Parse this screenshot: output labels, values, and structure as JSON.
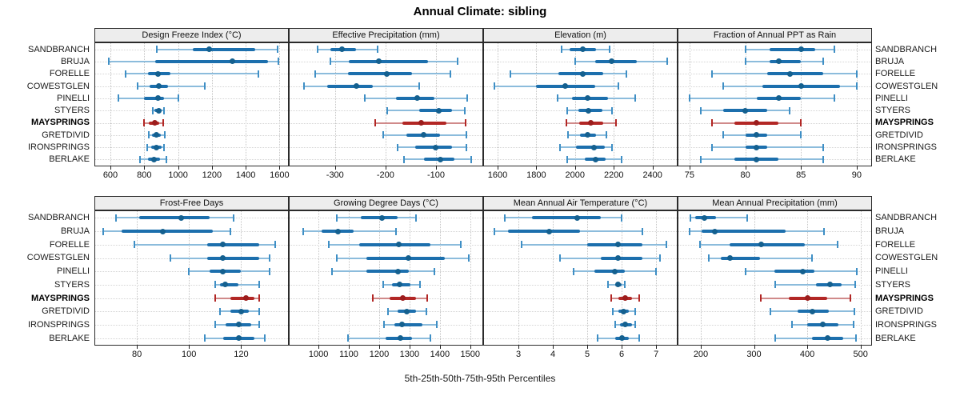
{
  "title": "Annual Climate: sibling",
  "caption": "5th-25th-50th-75th-95th Percentiles",
  "highlight_site": "MAYSPRINGS",
  "colors": {
    "normal_whisker": "#8cbcdc",
    "normal_cap": "#3f8fc5",
    "normal_box": "#1c6fad",
    "normal_dot": "#14608f",
    "highlight_whisker": "#d08a8a",
    "highlight_cap": "#b22725",
    "highlight_box": "#b22725",
    "highlight_dot": "#9c1d1d",
    "header_bg": "#ededed",
    "panel_border": "#2b2b2b"
  },
  "chart_data": {
    "type": "dot-whisker-trellis",
    "percentiles": [
      5,
      25,
      50,
      75,
      95
    ],
    "legend_position": "none",
    "grid": "dotted",
    "categories": [
      "SANDBRANCH",
      "BRUJA",
      "FORELLE",
      "COWESTGLEN",
      "PINELLI",
      "STYERS",
      "MAYSPRINGS",
      "GRETDIVID",
      "IRONSPRINGS",
      "BERLAKE"
    ],
    "panels": [
      {
        "title": "Design Freeze Index (°C)",
        "ticks": [
          600,
          800,
          1000,
          1200,
          1400,
          1600
        ],
        "xlim": [
          510,
          1650
        ],
        "values": [
          [
            875,
            1085,
            1185,
            1455,
            1590
          ],
          [
            590,
            865,
            1320,
            1530,
            1595
          ],
          [
            690,
            820,
            880,
            955,
            1475
          ],
          [
            760,
            830,
            885,
            940,
            1160
          ],
          [
            645,
            800,
            880,
            915,
            1000
          ],
          [
            850,
            862,
            888,
            905,
            917
          ],
          [
            798,
            828,
            863,
            888,
            914
          ],
          [
            827,
            846,
            870,
            898,
            922
          ],
          [
            818,
            841,
            870,
            903,
            917
          ],
          [
            775,
            822,
            859,
            894,
            930
          ]
        ]
      },
      {
        "title": "Effective Precipitation (mm)",
        "ticks": [
          -300,
          -200,
          -100
        ],
        "xlim": [
          -390,
          -8
        ],
        "values": [
          [
            -334,
            -310,
            -287,
            -259,
            -215
          ],
          [
            -309,
            -272,
            -213,
            -116,
            -58
          ],
          [
            -339,
            -275,
            -197,
            -147,
            -72
          ],
          [
            -362,
            -315,
            -257,
            -225,
            -134
          ],
          [
            -241,
            -179,
            -138,
            -103,
            -38
          ],
          [
            -197,
            -134,
            -94,
            -69,
            -43
          ],
          [
            -220,
            -166,
            -130,
            -79,
            -42
          ],
          [
            -205,
            -158,
            -125,
            -92,
            -40
          ],
          [
            -176,
            -142,
            -101,
            -69,
            -40
          ],
          [
            -163,
            -123,
            -92,
            -64,
            -31
          ]
        ]
      },
      {
        "title": "Elevation (m)",
        "ticks": [
          1600,
          1800,
          2000,
          2200,
          2400
        ],
        "xlim": [
          1530,
          2525
        ],
        "values": [
          [
            1930,
            1970,
            2040,
            2110,
            2180
          ],
          [
            2000,
            2105,
            2190,
            2320,
            2475
          ],
          [
            1665,
            1915,
            2040,
            2145,
            2265
          ],
          [
            1585,
            1800,
            1950,
            2105,
            2225
          ],
          [
            1910,
            1985,
            2065,
            2170,
            2310
          ],
          [
            1958,
            2015,
            2067,
            2140,
            2190
          ],
          [
            1955,
            2020,
            2080,
            2145,
            2210
          ],
          [
            1965,
            2025,
            2063,
            2110,
            2160
          ],
          [
            1920,
            2005,
            2098,
            2155,
            2190
          ],
          [
            1958,
            2048,
            2107,
            2157,
            2238
          ]
        ]
      },
      {
        "title": "Fraction of Annual PPT as Rain",
        "ticks": [
          75,
          80,
          85,
          90
        ],
        "xlim": [
          74,
          91.3
        ],
        "values": [
          [
            80,
            82.2,
            85,
            86.3,
            88
          ],
          [
            80,
            82.2,
            83,
            85,
            87
          ],
          [
            77,
            82,
            84,
            87,
            90
          ],
          [
            78,
            81.5,
            85,
            88.5,
            90
          ],
          [
            75,
            81,
            83,
            85,
            88
          ],
          [
            76,
            78,
            80,
            82,
            84
          ],
          [
            77,
            79,
            81,
            83,
            85
          ],
          [
            78,
            80,
            81,
            82,
            85
          ],
          [
            77,
            80,
            81,
            82,
            87
          ],
          [
            76,
            79,
            81,
            83,
            87
          ]
        ]
      },
      {
        "title": "Frost-Free Days",
        "ticks": [
          80,
          100,
          120
        ],
        "xlim": [
          64,
          138
        ],
        "values": [
          [
            72,
            81,
            97,
            108,
            117
          ],
          [
            67,
            74,
            90,
            109,
            116
          ],
          [
            79,
            107,
            113,
            127,
            133
          ],
          [
            93,
            107,
            113,
            127,
            131
          ],
          [
            100,
            108,
            113,
            120,
            131
          ],
          [
            110,
            112,
            114,
            119,
            127
          ],
          [
            110,
            116,
            122,
            125,
            127
          ],
          [
            112,
            116,
            120,
            123,
            127
          ],
          [
            110,
            114,
            119,
            124,
            127
          ],
          [
            106,
            113,
            119,
            125,
            129
          ]
        ]
      },
      {
        "title": "Growing Degree Days (°C)",
        "ticks": [
          1000,
          1100,
          1200,
          1300,
          1400,
          1500
        ],
        "xlim": [
          905,
          1540
        ],
        "values": [
          [
            1060,
            1140,
            1210,
            1260,
            1320
          ],
          [
            950,
            1010,
            1065,
            1115,
            1255
          ],
          [
            1035,
            1135,
            1265,
            1370,
            1470
          ],
          [
            1060,
            1158,
            1297,
            1415,
            1495
          ],
          [
            1045,
            1158,
            1263,
            1297,
            1382
          ],
          [
            1212,
            1242,
            1267,
            1303,
            1335
          ],
          [
            1180,
            1235,
            1278,
            1322,
            1357
          ],
          [
            1230,
            1260,
            1290,
            1322,
            1355
          ],
          [
            1215,
            1250,
            1275,
            1342,
            1390
          ],
          [
            1098,
            1220,
            1270,
            1308,
            1368
          ]
        ]
      },
      {
        "title": "Mean Annual Air Temperature (°C)",
        "ticks": [
          3,
          4,
          5,
          6,
          7
        ],
        "xlim": [
          2.0,
          7.6
        ],
        "values": [
          [
            2.6,
            3.4,
            4.7,
            5.4,
            6.0
          ],
          [
            2.3,
            2.7,
            3.9,
            4.8,
            6.6
          ],
          [
            3.1,
            5.0,
            5.9,
            6.6,
            7.3
          ],
          [
            4.2,
            5.4,
            5.9,
            6.6,
            7.1
          ],
          [
            4.6,
            5.2,
            5.8,
            6.1,
            7.0
          ],
          [
            5.6,
            5.8,
            5.9,
            6.0,
            6.1
          ],
          [
            5.7,
            5.9,
            6.1,
            6.3,
            6.5
          ],
          [
            5.75,
            5.9,
            6.05,
            6.2,
            6.4
          ],
          [
            5.8,
            5.95,
            6.1,
            6.3,
            6.4
          ],
          [
            5.3,
            5.8,
            6.0,
            6.2,
            6.5
          ]
        ]
      },
      {
        "title": "Mean Annual Precipitation (mm)",
        "ticks": [
          200,
          300,
          400,
          500
        ],
        "xlim": [
          158,
          520
        ],
        "values": [
          [
            180,
            190,
            207,
            228,
            287
          ],
          [
            179,
            202,
            227,
            360,
            432
          ],
          [
            198,
            254,
            313,
            395,
            457
          ],
          [
            215,
            237,
            255,
            311,
            409
          ],
          [
            284,
            338,
            392,
            414,
            493
          ],
          [
            339,
            417,
            442,
            464,
            490
          ],
          [
            313,
            365,
            400,
            438,
            481
          ],
          [
            330,
            382,
            409,
            441,
            489
          ],
          [
            371,
            400,
            429,
            459,
            487
          ],
          [
            340,
            409,
            438,
            468,
            492
          ]
        ]
      }
    ]
  }
}
